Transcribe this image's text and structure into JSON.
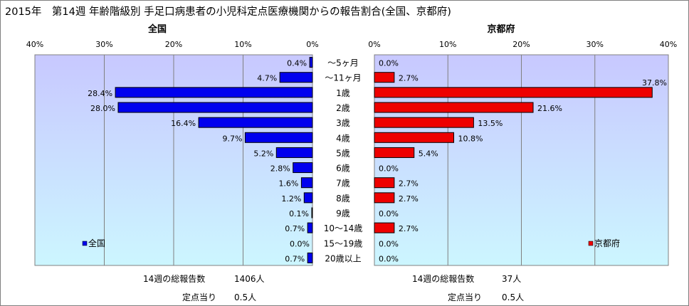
{
  "title": "2015年　第14週 年齢階級別 手足口病患者の小児科定点医療機関からの報告割合(全国、京都府)",
  "colors": {
    "national_bar": "#0000ee",
    "kyoto_bar": "#ee0000",
    "plot_bg_top": "#c8c8ff",
    "plot_bg_bottom": "#ccf6ff",
    "grid": "#808080"
  },
  "chart_data": [
    {
      "type": "bar",
      "orientation": "horizontal-reversed",
      "title": "全国",
      "series": [
        {
          "name": "全国",
          "values": [
            0.4,
            4.7,
            28.4,
            28.0,
            16.4,
            9.7,
            5.2,
            2.8,
            1.6,
            1.2,
            0.1,
            0.7,
            0.0,
            0.7
          ]
        }
      ],
      "value_labels": [
        "0.4%",
        "4.7%",
        "28.4%",
        "28.0%",
        "16.4%",
        "9.7%",
        "5.2%",
        "2.8%",
        "1.6%",
        "1.2%",
        "0.1%",
        "0.7%",
        "0.0%",
        "0.7%"
      ],
      "xlim": [
        0,
        40
      ],
      "ticks": [
        "0%",
        "10%",
        "20%",
        "30%",
        "40%"
      ],
      "legend": "bottom-left",
      "grid": true
    },
    {
      "type": "bar",
      "orientation": "horizontal",
      "title": "京都府",
      "series": [
        {
          "name": "京都府",
          "values": [
            0.0,
            2.7,
            37.8,
            21.6,
            13.5,
            10.8,
            5.4,
            0.0,
            2.7,
            2.7,
            0.0,
            2.7,
            0.0,
            0.0
          ]
        }
      ],
      "value_labels": [
        "0.0%",
        "2.7%",
        "37.8%",
        "21.6%",
        "13.5%",
        "10.8%",
        "5.4%",
        "0.0%",
        "2.7%",
        "2.7%",
        "0.0%",
        "2.7%",
        "0.0%",
        "0.0%"
      ],
      "xlim": [
        0,
        40
      ],
      "ticks": [
        "0%",
        "10%",
        "20%",
        "30%",
        "40%"
      ],
      "legend": "bottom-right",
      "grid": true
    }
  ],
  "categories": [
    "～5ヶ月",
    "～11ヶ月",
    "1歳",
    "2歳",
    "3歳",
    "4歳",
    "5歳",
    "6歳",
    "7歳",
    "8歳",
    "9歳",
    "10～14歳",
    "15～19歳",
    "20歳以上"
  ],
  "footer": {
    "national_total_label": "14週の総報告数",
    "national_total_value": "1406人",
    "national_per_label": "定点当り",
    "national_per_value": "0.5人",
    "kyoto_total_label": "14週の総報告数",
    "kyoto_total_value": "37人",
    "kyoto_per_label": "定点当り",
    "kyoto_per_value": "0.5人"
  }
}
